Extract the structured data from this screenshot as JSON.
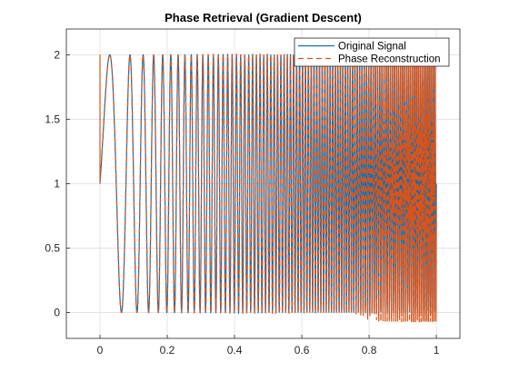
{
  "chart_data": {
    "type": "line",
    "title": "Phase Retrieval (Gradient Descent)",
    "xlabel": "",
    "ylabel": "",
    "xlim": [
      -0.1,
      1.07
    ],
    "ylim": [
      -0.2,
      2.2
    ],
    "xticks": [
      0,
      0.2,
      0.4,
      0.6,
      0.8,
      1
    ],
    "xtick_labels": [
      "0",
      "0.2",
      "0.4",
      "0.6",
      "0.8",
      "1"
    ],
    "yticks": [
      0,
      0.5,
      1,
      1.5,
      2
    ],
    "ytick_labels": [
      "0",
      "0.5",
      "1",
      "1.5",
      "2"
    ],
    "grid": true,
    "legend_location": "top-right",
    "signal_model": "y = 1 + cos(2*pi*(-0.25 + 6x + 90x^2)) on x in [0, 1]",
    "series": [
      {
        "name": "Original Signal",
        "color": "#0072BD",
        "style": "solid",
        "x_start": 0,
        "x_end": 1,
        "description": "Chirp between 0 and 2, frequency increasing with x"
      },
      {
        "name": "Phase Reconstruction",
        "color": "#D95319",
        "style": "dashed",
        "x_start": 0,
        "x_end": 1,
        "start_transient": [
          1.05,
          2.0
        ],
        "description": "Tracks the original chirp; noisy dense oscillation for x > 0.75"
      }
    ]
  }
}
